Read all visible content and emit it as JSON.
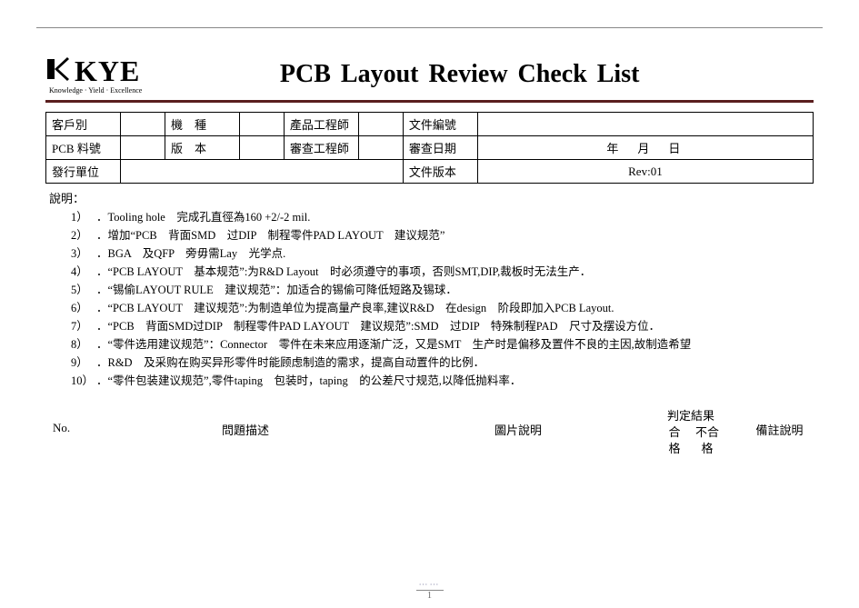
{
  "logo": {
    "text": "KYE",
    "sub": "Knowledge · Yield · Excellence"
  },
  "title": "PCB  Layout  Review  Check  List",
  "info": {
    "r1c1_lbl": "客戶別",
    "r1c1_val": "",
    "r1c2_lbl": "機　種",
    "r1c2_val": "",
    "r1c3_lbl": "產品工程師",
    "r1c3_val": "",
    "r1c4_lbl": "文件編號",
    "r1c4_val": "",
    "r2c1_lbl": "PCB 料號",
    "r2c1_val": "",
    "r2c2_lbl": "版　本",
    "r2c2_val": "",
    "r2c3_lbl": "審查工程師",
    "r2c3_val": "",
    "r2c4_lbl": "審查日期",
    "r2c4_val": "年　月　日",
    "r3c1_lbl": "發行單位",
    "r3c1_val": "",
    "r3c4_lbl": "文件版本",
    "r3c4_val": "Rev:01"
  },
  "notes_label": "說明：",
  "notes": [
    "．Tooling hole　完成孔直徑為160 +2/-2 mil.",
    "．增加“PCB　背面SMD　过DIP　制程零件PAD LAYOUT　建议规范”",
    "．BGA　及QFP　旁毋需Lay　光学点.",
    "．“PCB LAYOUT　基本规范”:为R&D Layout　时必须遵守的事项，否则SMT,DIP,裁板时无法生产．",
    "．“锡偷LAYOUT RULE　建议规范”：加适合的锡偷可降低短路及锡球．",
    "．“PCB LAYOUT　建议规范”:为制造单位为提高量产良率,建议R&D　在design　阶段即加入PCB Layout.",
    "．“PCB　背面SMD过DIP　制程零件PAD LAYOUT　建议规范”:SMD　过DIP　特殊制程PAD　尺寸及摆设方位．",
    "．“零件选用建议规范”：Connector　零件在未来应用逐渐广泛，又是SMT　生产时是偏移及置件不良的主因,故制造希望",
    "．R&D　及采购在购买异形零件时能顾虑制造的需求，提高自动置件的比例．",
    "．“零件包装建议规范”,零件taping　包装时，taping　的公差尺寸规范,以降低抛料率．"
  ],
  "columns": {
    "no": "No.",
    "desc": "問題描述",
    "img": "圖片說明",
    "judge_title": "判定結果",
    "judge_ok_1": "合",
    "judge_ok_2": "格",
    "judge_ng_1": "不合",
    "judge_ng_2": "格",
    "remark": "備註說明"
  },
  "page_number": "1"
}
